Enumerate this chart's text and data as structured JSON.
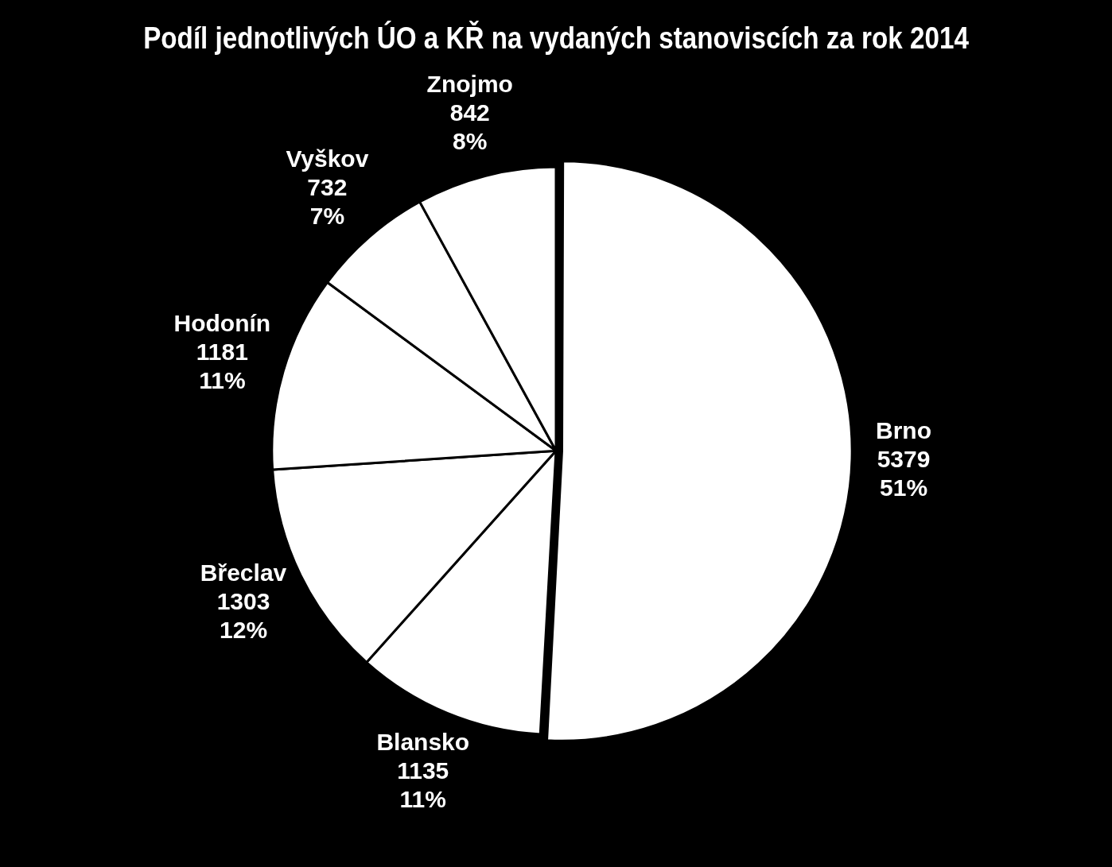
{
  "chart_data": {
    "type": "pie",
    "title": "Podíl jednotlivých ÚO a KŘ na vydaných stanoviscích za rok 2014",
    "categories": [
      "Brno",
      "Blansko",
      "Břeclav",
      "Hodonín",
      "Vyškov",
      "Znojmo"
    ],
    "values": [
      5379,
      1135,
      1303,
      1181,
      732,
      842
    ],
    "value_labels": [
      "5379\n51%",
      "1135\n11%",
      "1303\n12%",
      "1181\n11%",
      "732\n7%",
      "842\n8%"
    ],
    "colors": [
      "#ffffff",
      "#ffffff",
      "#ffffff",
      "#ffffff",
      "#ffffff",
      "#ffffff"
    ],
    "legend": false
  }
}
